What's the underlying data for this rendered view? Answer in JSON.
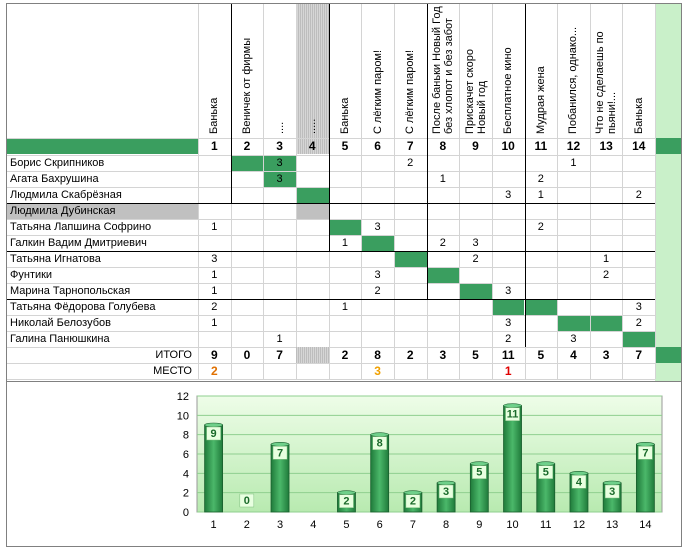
{
  "columns": [
    {
      "num": "1",
      "title": "Банька"
    },
    {
      "num": "2",
      "title": "Веничек от фирмы"
    },
    {
      "num": "3",
      "title": "...."
    },
    {
      "num": "4",
      "title": "....."
    },
    {
      "num": "5",
      "title": "Банька"
    },
    {
      "num": "6",
      "title": "С лёгким паром!"
    },
    {
      "num": "7",
      "title": "С лёгким паром!"
    },
    {
      "num": "8",
      "title": "После баньки Новый Год|без хлопот и без забот"
    },
    {
      "num": "9",
      "title": "Прискачет скоро|Новый год"
    },
    {
      "num": "10",
      "title": "Бесплатное кино"
    },
    {
      "num": "11",
      "title": "Мудрая жена"
    },
    {
      "num": "12",
      "title": "Побанился, однако..."
    },
    {
      "num": "13",
      "title": "Что не сделаешь по|пьяни!..."
    },
    {
      "num": "14",
      "title": "Банька"
    }
  ],
  "rows": [
    {
      "name": "Борис Скрипников",
      "votes": {
        "3": "3",
        "7": "2",
        "12": "1"
      }
    },
    {
      "name": "Агата Бахрушина",
      "votes": {
        "3": "3",
        "8": "1",
        "11": "2"
      }
    },
    {
      "name": "Людмила Скабрёзная",
      "votes": {
        "10": "3",
        "11": "1",
        "14": "2"
      }
    },
    {
      "name": "Людмила Дубинская",
      "votes": {}
    },
    {
      "name": "Татьяна Лапшина Софрино",
      "votes": {
        "1": "1",
        "6": "3",
        "11": "2"
      }
    },
    {
      "name": "Галкин Вадим Дмитриевич",
      "votes": {
        "5": "1",
        "8": "2",
        "9": "3"
      }
    },
    {
      "name": "Татьяна Игнатова",
      "votes": {
        "1": "3",
        "9": "2",
        "13": "1"
      }
    },
    {
      "name": "Фунтики",
      "votes": {
        "1": "1",
        "6": "3",
        "13": "2"
      }
    },
    {
      "name": "Марина Тарнопольская",
      "votes": {
        "1": "1",
        "6": "2",
        "10": "3"
      }
    },
    {
      "name": "Татьяна Фёдорова Голубева",
      "votes": {
        "1": "2",
        "5": "1",
        "14": "3"
      }
    },
    {
      "name": "Николай Белозубов",
      "votes": {
        "1": "1",
        "10": "3",
        "14": "2"
      }
    },
    {
      "name": "Галина Панюшкина",
      "votes": {
        "3": "1",
        "10": "2",
        "12": "3"
      }
    }
  ],
  "totals_label": "ИТОГО",
  "place_label": "МЕСТО",
  "totals": [
    "9",
    "0",
    "7",
    "",
    "2",
    "8",
    "2",
    "3",
    "5",
    "11",
    "5",
    "4",
    "3",
    "7"
  ],
  "places": {
    "1": "2",
    "6": "3",
    "10": "1"
  },
  "colors": {
    "green": "#3a9e5f",
    "grey": "#c0c0c0",
    "place1": "#e00000",
    "place2": "#e07000",
    "place3": "#f0a000",
    "bar": "#2f8f4a",
    "plot_bg": "#d4f5c8"
  },
  "chart_data": {
    "type": "bar",
    "categories": [
      "1",
      "2",
      "3",
      "4",
      "5",
      "6",
      "7",
      "8",
      "9",
      "10",
      "11",
      "12",
      "13",
      "14"
    ],
    "values": [
      9,
      0,
      7,
      null,
      2,
      8,
      2,
      3,
      5,
      11,
      5,
      4,
      3,
      7
    ],
    "data_labels": [
      "9",
      "0",
      "7",
      "",
      "2",
      "8",
      "2",
      "3",
      "5",
      "11",
      "5",
      "4",
      "3",
      "7"
    ],
    "ylim": [
      0,
      12
    ],
    "yticks": [
      "0",
      "2",
      "4",
      "6",
      "8",
      "10",
      "12"
    ],
    "grid": true
  }
}
